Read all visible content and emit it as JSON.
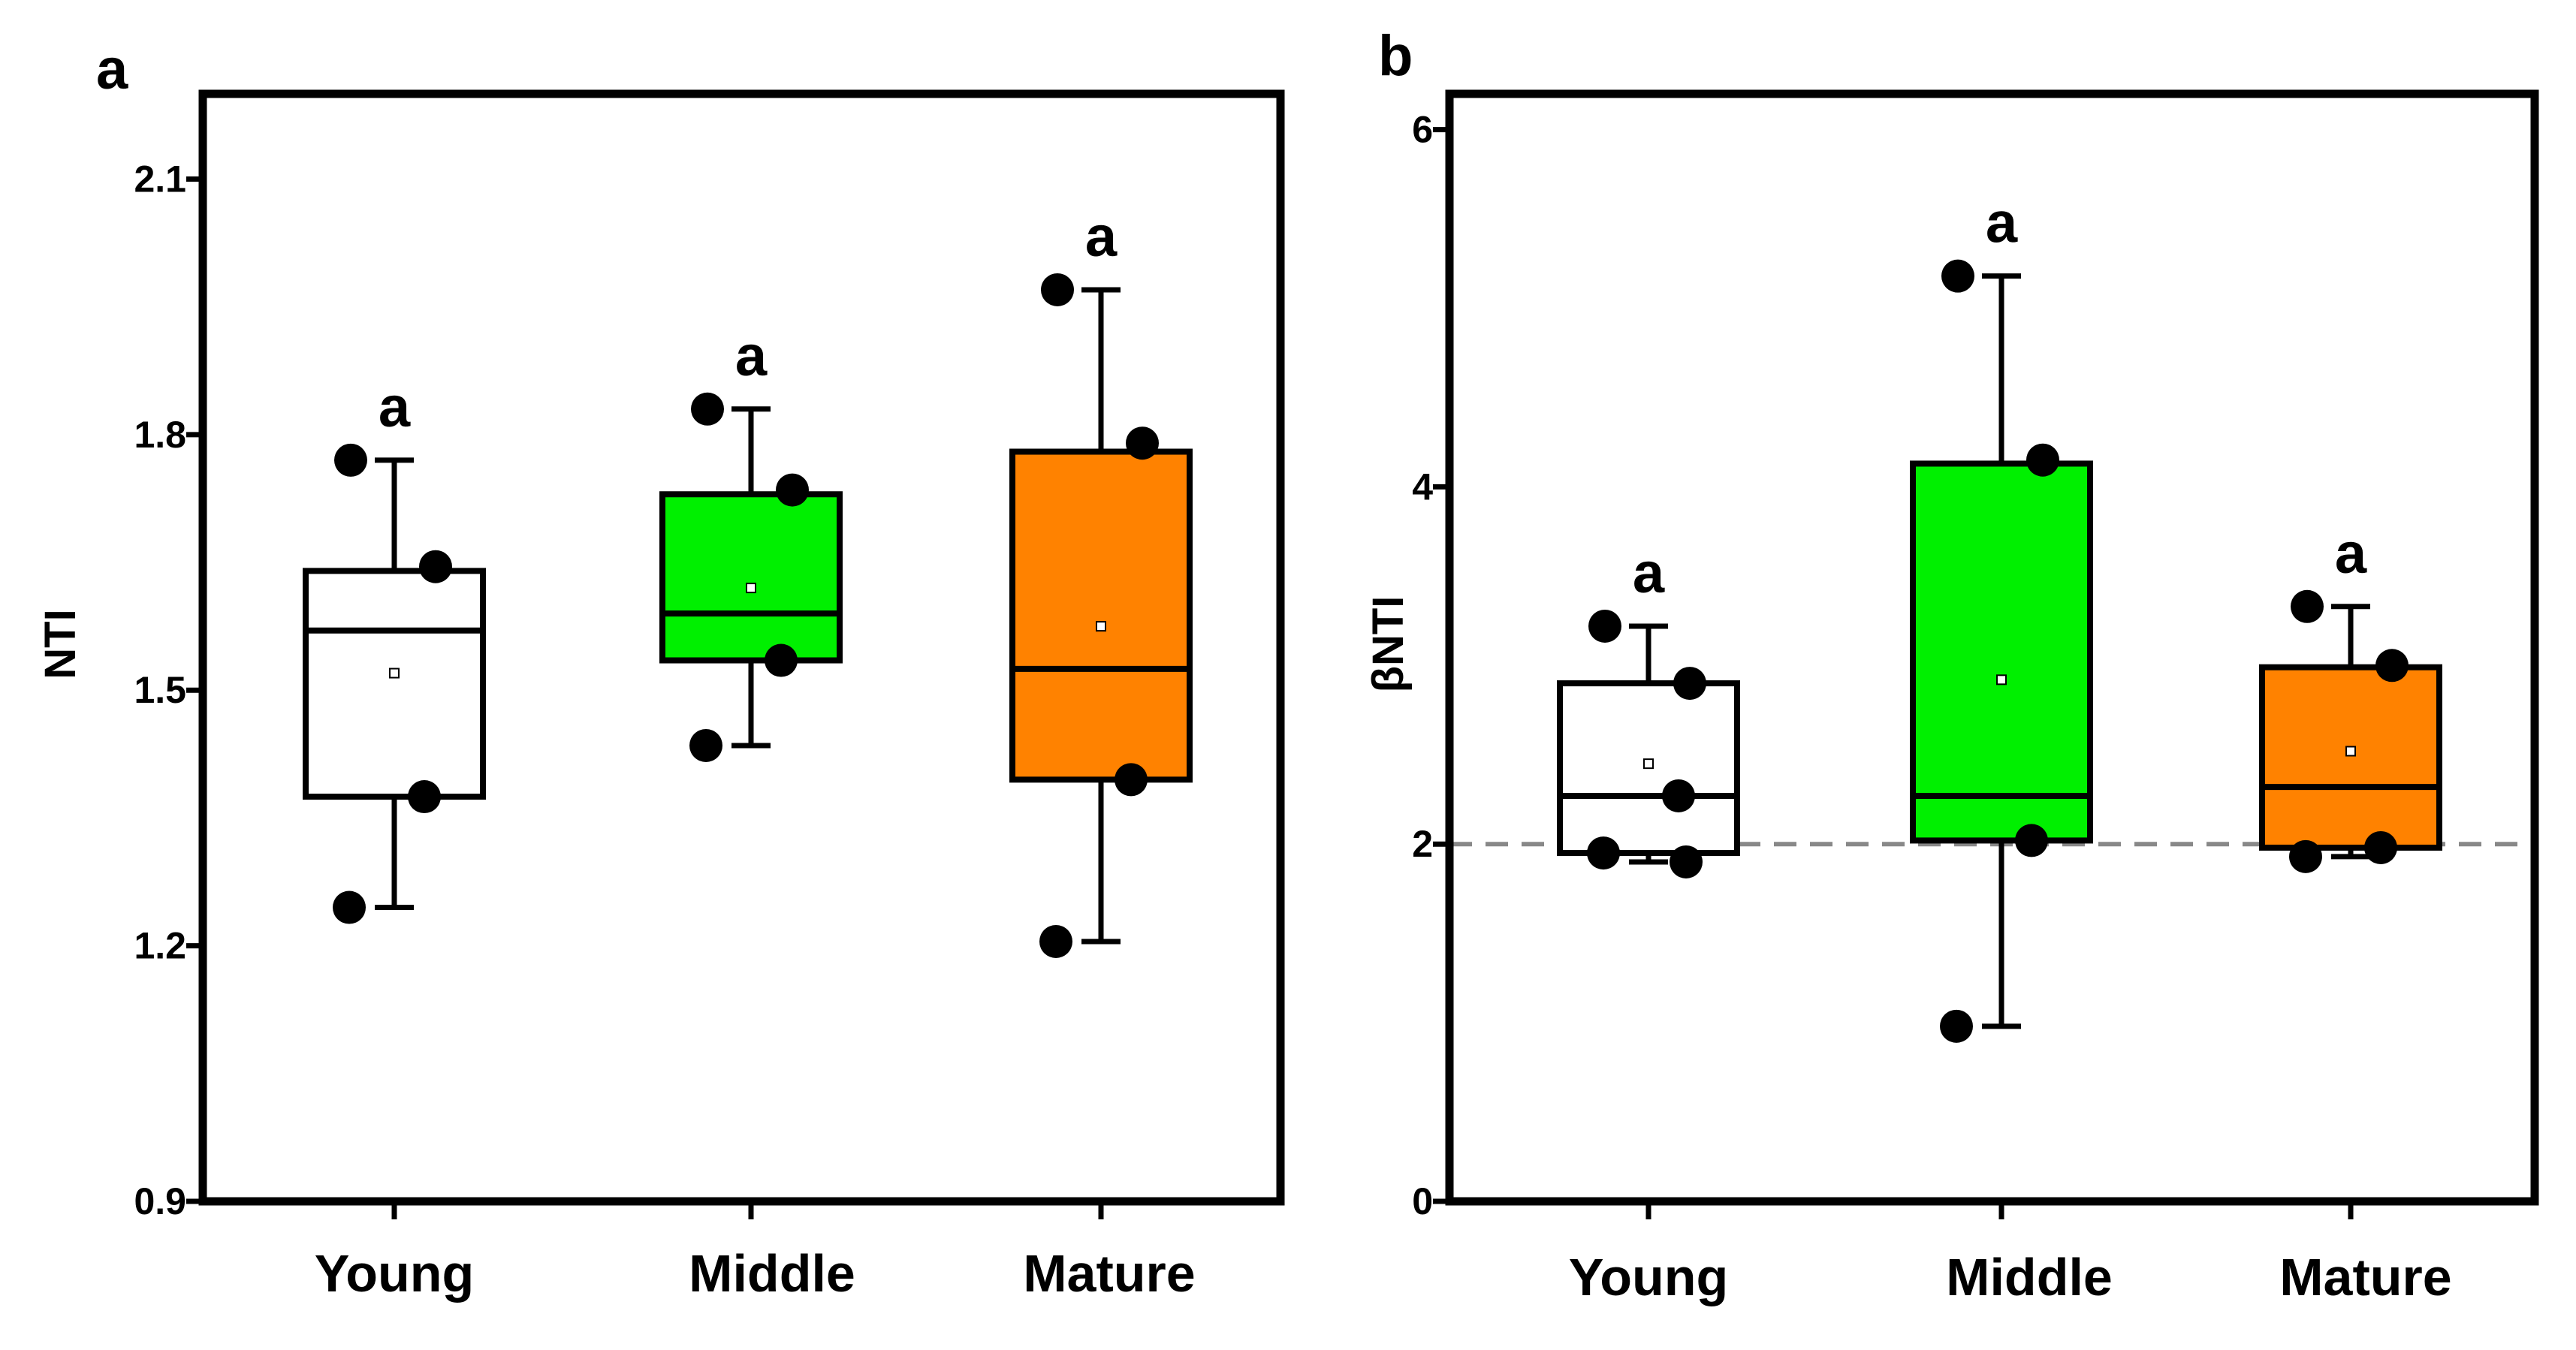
{
  "figure": {
    "background": "#ffffff"
  },
  "chart_data": [
    {
      "type": "box",
      "panel_label": "a",
      "ylabel": "NTI",
      "xlabel": "",
      "ylim": [
        0.9,
        2.2
      ],
      "yticks": [
        0.9,
        1.2,
        1.5,
        1.8,
        2.1
      ],
      "ytick_labels": [
        "0.9",
        "1.2",
        "1.5",
        "1.8",
        "2.1"
      ],
      "categories": [
        "Young",
        "Middle",
        "Mature"
      ],
      "boxes": [
        {
          "category": "Young",
          "fill": "#ffffff",
          "whisker_low": 1.245,
          "q1": 1.375,
          "median": 1.57,
          "q3": 1.64,
          "whisker_high": 1.77,
          "mean": 1.52,
          "points": [
            1.77,
            1.645,
            1.375,
            1.245
          ],
          "letter": "a"
        },
        {
          "category": "Middle",
          "fill": "#00f000",
          "whisker_low": 1.435,
          "q1": 1.535,
          "median": 1.59,
          "q3": 1.73,
          "whisker_high": 1.83,
          "mean": 1.62,
          "points": [
            1.83,
            1.735,
            1.535,
            1.435
          ],
          "letter": "a"
        },
        {
          "category": "Mature",
          "fill": "#ff8200",
          "whisker_low": 1.205,
          "q1": 1.395,
          "median": 1.525,
          "q3": 1.78,
          "whisker_high": 1.97,
          "mean": 1.575,
          "points": [
            1.97,
            1.79,
            1.395,
            1.205
          ],
          "letter": "a"
        }
      ],
      "reference_line": null
    },
    {
      "type": "box",
      "panel_label": "b",
      "ylabel": "βNTI",
      "xlabel": "",
      "ylim": [
        0,
        6.2
      ],
      "yticks": [
        0,
        2,
        4,
        6
      ],
      "ytick_labels": [
        "0",
        "2",
        "4",
        "6"
      ],
      "categories": [
        "Young",
        "Middle",
        "Mature"
      ],
      "boxes": [
        {
          "category": "Young",
          "fill": "#ffffff",
          "whisker_low": 1.9,
          "q1": 1.95,
          "median": 2.27,
          "q3": 2.9,
          "whisker_high": 3.22,
          "mean": 2.45,
          "points": [
            3.22,
            2.9,
            2.27,
            1.95,
            1.9
          ],
          "letter": "a"
        },
        {
          "category": "Middle",
          "fill": "#00f000",
          "whisker_low": 0.98,
          "q1": 2.02,
          "median": 2.27,
          "q3": 4.13,
          "whisker_high": 5.18,
          "mean": 2.92,
          "points": [
            5.18,
            4.15,
            2.02,
            0.98
          ],
          "letter": "a"
        },
        {
          "category": "Mature",
          "fill": "#ff8200",
          "whisker_low": 1.93,
          "q1": 1.98,
          "median": 2.32,
          "q3": 2.99,
          "whisker_high": 3.33,
          "mean": 2.52,
          "points": [
            3.33,
            3.0,
            1.98,
            1.93
          ],
          "letter": "a"
        }
      ],
      "reference_line": {
        "y": 2,
        "style": "dashed",
        "color": "#888888"
      }
    }
  ]
}
